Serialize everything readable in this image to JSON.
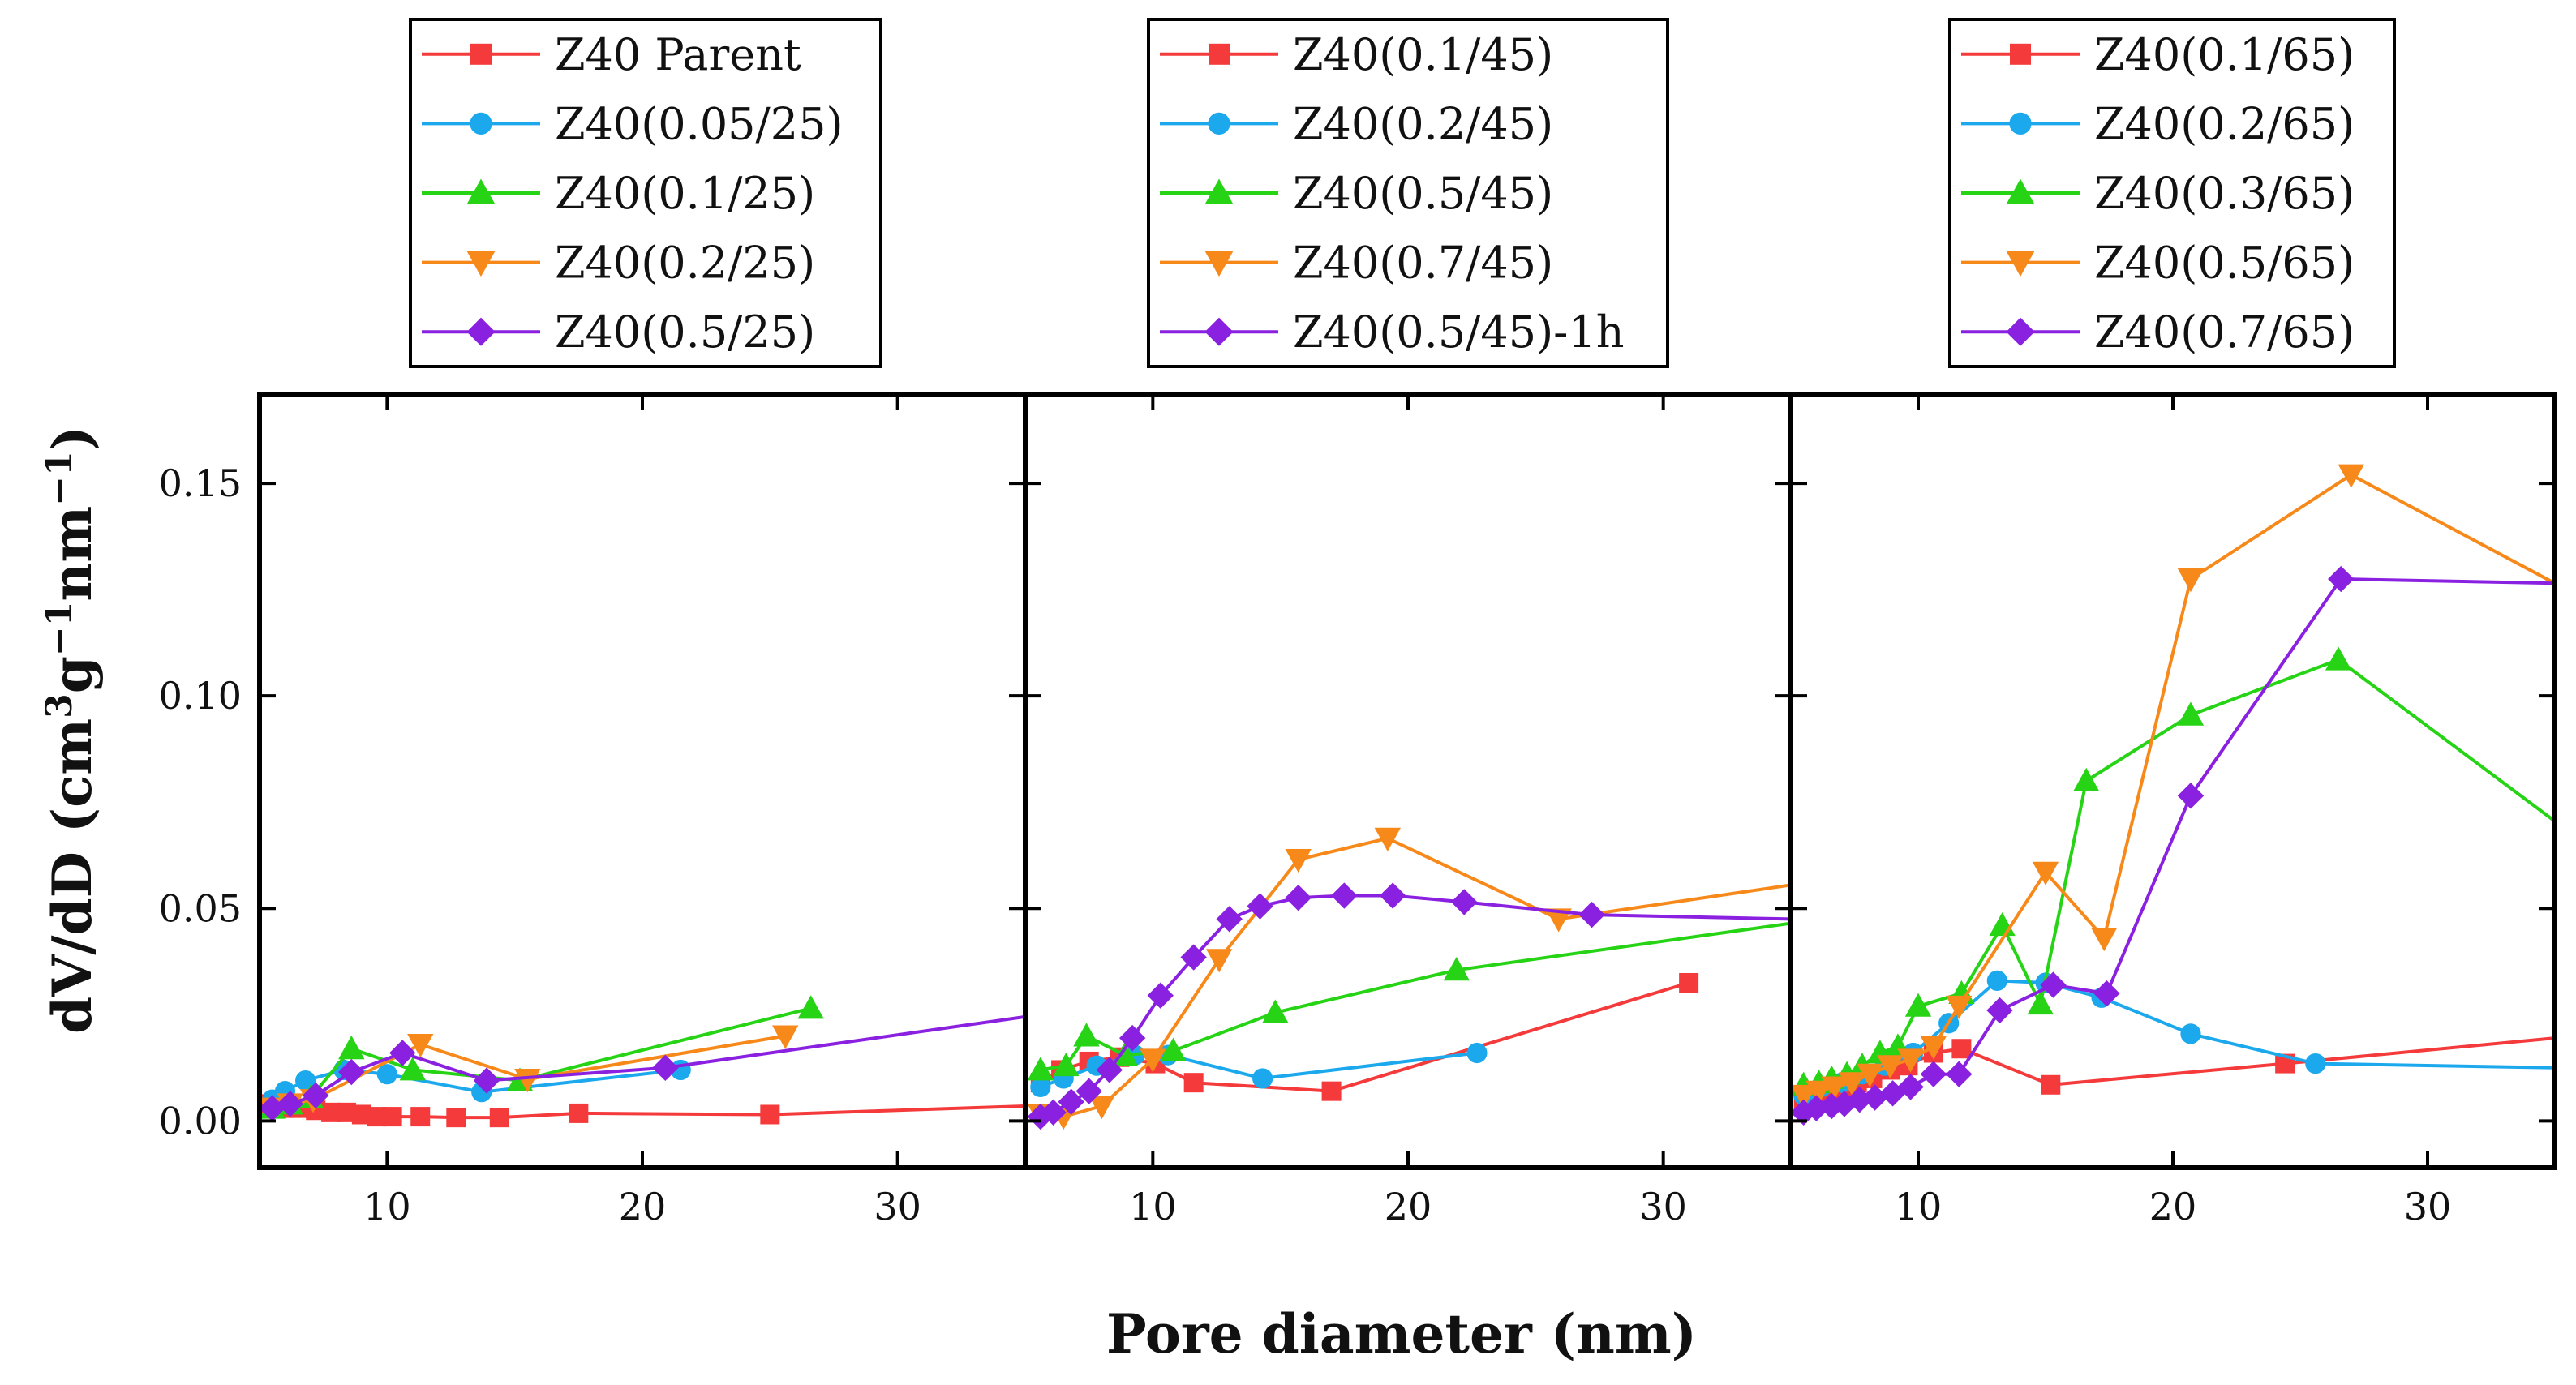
{
  "figure": {
    "xlabel": "Pore diameter (nm)",
    "ylabel_main": "dV/dD (cm",
    "ylabel_sup1": "3",
    "ylabel_mid": "g",
    "ylabel_sup2": "−1",
    "ylabel_mid2": "nm",
    "ylabel_sup3": "−1",
    "ylabel_end": ")",
    "y_ticks": [
      "0.00",
      "0.05",
      "0.10",
      "0.15"
    ],
    "x_ticks": [
      "10",
      "20",
      "30"
    ]
  },
  "chart_data": [
    {
      "type": "line",
      "panel": "left",
      "xlabel": "Pore diameter (nm)",
      "ylabel": "dV/dD (cm3g-1nm-1)",
      "xlim": [
        5,
        35
      ],
      "ylim": [
        -0.011,
        0.171
      ],
      "series": [
        {
          "name": "Z40 Parent",
          "color": "#f43a3a",
          "marker": "square",
          "x": [
            5.4,
            6.0,
            6.6,
            7.2,
            7.8,
            8.4,
            9.0,
            9.6,
            10.2,
            11.3,
            12.7,
            14.4,
            17.5,
            25.0,
            35.0
          ],
          "y": [
            0.004,
            0.003,
            0.003,
            0.0025,
            0.002,
            0.002,
            0.0015,
            0.001,
            0.001,
            0.001,
            0.0008,
            0.0008,
            0.0018,
            0.0015,
            0.0035
          ]
        },
        {
          "name": "Z40(0.05/25)",
          "color": "#1ca8ec",
          "marker": "circle",
          "x": [
            5.5,
            6.0,
            6.8,
            8.3,
            10.0,
            13.7,
            21.5
          ],
          "y": [
            0.005,
            0.007,
            0.0095,
            0.012,
            0.011,
            0.0068,
            0.012
          ]
        },
        {
          "name": "Z40(0.1/25)",
          "color": "#26d315",
          "marker": "triangle-up",
          "x": [
            5.5,
            6.2,
            7.0,
            8.6,
            11.0,
            15.2,
            26.6
          ],
          "y": [
            0.003,
            0.004,
            0.0055,
            0.017,
            0.012,
            0.0095,
            0.0265
          ]
        },
        {
          "name": "Z40(0.2/25)",
          "color": "#f7891b",
          "marker": "triangle-down",
          "x": [
            5.5,
            6.2,
            7.1,
            11.3,
            15.5,
            25.6
          ],
          "y": [
            0.003,
            0.004,
            0.005,
            0.018,
            0.0098,
            0.02
          ]
        },
        {
          "name": "Z40(0.5/25)",
          "color": "#8b21e0",
          "marker": "diamond",
          "x": [
            5.5,
            6.2,
            7.2,
            8.6,
            10.6,
            13.9,
            20.9,
            35.0
          ],
          "y": [
            0.003,
            0.004,
            0.006,
            0.0115,
            0.016,
            0.0095,
            0.0125,
            0.0245
          ]
        }
      ],
      "legend": "top"
    },
    {
      "type": "line",
      "panel": "middle",
      "xlabel": "Pore diameter (nm)",
      "ylabel": "dV/dD (cm3g-1nm-1)",
      "xlim": [
        5,
        35
      ],
      "ylim": [
        -0.011,
        0.171
      ],
      "series": [
        {
          "name": "Z40(0.1/45)",
          "color": "#f43a3a",
          "marker": "square",
          "x": [
            5.6,
            6.4,
            7.5,
            8.7,
            10.1,
            11.6,
            17.0,
            31.0
          ],
          "y": [
            0.009,
            0.012,
            0.014,
            0.015,
            0.0135,
            0.009,
            0.007,
            0.0325
          ]
        },
        {
          "name": "Z40(0.2/45)",
          "color": "#1ca8ec",
          "marker": "circle",
          "x": [
            5.6,
            6.5,
            7.8,
            9.3,
            10.6,
            14.3,
            22.7
          ],
          "y": [
            0.008,
            0.01,
            0.013,
            0.0155,
            0.0155,
            0.01,
            0.016
          ]
        },
        {
          "name": "Z40(0.5/45)",
          "color": "#26d315",
          "marker": "triangle-up",
          "x": [
            5.6,
            6.6,
            7.4,
            8.9,
            10.8,
            14.8,
            21.9,
            35.0
          ],
          "y": [
            0.012,
            0.013,
            0.02,
            0.0155,
            0.0165,
            0.0255,
            0.0355,
            0.0465
          ]
        },
        {
          "name": "Z40(0.7/45)",
          "color": "#f7891b",
          "marker": "triangle-down",
          "x": [
            5.6,
            6.5,
            8.0,
            10.0,
            12.6,
            15.7,
            19.2,
            25.9,
            35.0
          ],
          "y": [
            0.0015,
            0.001,
            0.0035,
            0.0145,
            0.038,
            0.0615,
            0.0665,
            0.0475,
            0.0555
          ]
        },
        {
          "name": "Z40(0.5/45)-1h",
          "color": "#8b21e0",
          "marker": "diamond",
          "x": [
            5.6,
            6.1,
            6.8,
            7.5,
            8.3,
            9.2,
            10.3,
            11.6,
            13.0,
            14.2,
            15.7,
            17.5,
            19.4,
            22.2,
            27.2,
            35.0
          ],
          "y": [
            0.001,
            0.002,
            0.0045,
            0.007,
            0.012,
            0.0195,
            0.0295,
            0.0385,
            0.0475,
            0.0505,
            0.0525,
            0.053,
            0.053,
            0.0515,
            0.0485,
            0.0475
          ]
        }
      ],
      "legend": "top"
    },
    {
      "type": "line",
      "panel": "right",
      "xlabel": "Pore diameter (nm)",
      "ylabel": "dV/dD (cm3g-1nm-1)",
      "xlim": [
        5,
        35
      ],
      "ylim": [
        -0.011,
        0.171
      ],
      "series": [
        {
          "name": "Z40(0.1/65)",
          "color": "#f43a3a",
          "marker": "square",
          "x": [
            5.5,
            6.0,
            6.5,
            7.0,
            7.6,
            8.2,
            8.9,
            9.6,
            10.6,
            11.7,
            15.2,
            24.4,
            35.0
          ],
          "y": [
            0.005,
            0.006,
            0.007,
            0.008,
            0.009,
            0.01,
            0.012,
            0.013,
            0.016,
            0.017,
            0.0085,
            0.0135,
            0.0195
          ]
        },
        {
          "name": "Z40(0.2/65)",
          "color": "#1ca8ec",
          "marker": "circle",
          "x": [
            5.5,
            6.2,
            7.0,
            7.8,
            8.7,
            9.8,
            11.2,
            13.1,
            15.0,
            17.2,
            20.7,
            25.6,
            35.0
          ],
          "y": [
            0.006,
            0.008,
            0.009,
            0.011,
            0.013,
            0.016,
            0.023,
            0.033,
            0.0325,
            0.029,
            0.0205,
            0.0135,
            0.0125
          ]
        },
        {
          "name": "Z40(0.3/65)",
          "color": "#26d315",
          "marker": "triangle-up",
          "x": [
            5.5,
            6.1,
            6.6,
            7.2,
            7.8,
            8.5,
            9.2,
            10.0,
            11.7,
            13.3,
            14.8,
            16.6,
            20.7,
            26.5,
            35.0
          ],
          "y": [
            0.0085,
            0.009,
            0.01,
            0.011,
            0.013,
            0.016,
            0.0175,
            0.027,
            0.03,
            0.046,
            0.0275,
            0.08,
            0.0955,
            0.1085,
            0.0705
          ]
        },
        {
          "name": "Z40(0.5/65)",
          "color": "#f7891b",
          "marker": "triangle-down",
          "x": [
            5.5,
            6.1,
            6.7,
            7.4,
            8.1,
            8.9,
            9.7,
            10.6,
            11.6,
            15.0,
            17.3,
            20.7,
            27.0,
            35.0
          ],
          "y": [
            0.006,
            0.007,
            0.008,
            0.009,
            0.011,
            0.013,
            0.0145,
            0.0175,
            0.027,
            0.0585,
            0.043,
            0.1275,
            0.152,
            0.1265
          ]
        },
        {
          "name": "Z40(0.7/65)",
          "color": "#8b21e0",
          "marker": "diamond",
          "x": [
            5.5,
            6.0,
            6.6,
            7.1,
            7.7,
            8.3,
            9.0,
            9.7,
            10.6,
            11.6,
            13.2,
            15.3,
            17.4,
            20.7,
            26.6,
            35.0
          ],
          "y": [
            0.002,
            0.003,
            0.0035,
            0.004,
            0.005,
            0.0055,
            0.0065,
            0.008,
            0.011,
            0.011,
            0.026,
            0.032,
            0.03,
            0.0765,
            0.1275,
            0.1265
          ]
        }
      ],
      "legend": "top"
    }
  ]
}
